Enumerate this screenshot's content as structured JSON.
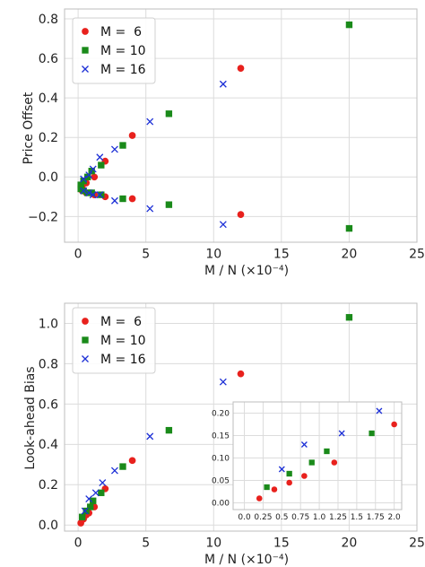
{
  "colors": {
    "m6": "#e8211d",
    "m10": "#1a8a1a",
    "m16": "#1c2fd6",
    "grid": "#dcdcdc",
    "axes": "#bdbdbd"
  },
  "chart_data": [
    {
      "type": "scatter",
      "title": "",
      "xlabel": "M / N (×10⁻⁴)",
      "ylabel": "Price Offset",
      "xlim": [
        -1,
        25
      ],
      "ylim": [
        -0.33,
        0.85
      ],
      "xticks": [
        0,
        5,
        10,
        15,
        20,
        25
      ],
      "xtick_labels": [
        "0",
        "5",
        "10",
        "15",
        "20",
        "25"
      ],
      "yticks": [
        -0.2,
        0.0,
        0.2,
        0.4,
        0.6,
        0.8
      ],
      "ytick_labels": [
        "−0.2",
        "0.0",
        "0.2",
        "0.4",
        "0.6",
        "0.8"
      ],
      "grid": true,
      "legend": "top-left",
      "series": [
        {
          "name": "M =  6",
          "marker": "circle",
          "x": [
            0.3,
            0.6,
            1.2,
            2.0,
            4.0,
            12.0,
            0.3,
            0.6,
            1.2,
            2.0,
            4.0,
            12.0
          ],
          "y": [
            -0.05,
            -0.03,
            0.0,
            0.08,
            0.21,
            0.55,
            -0.07,
            -0.08,
            -0.09,
            -0.1,
            -0.11,
            -0.19
          ]
        },
        {
          "name": "M = 10",
          "marker": "square",
          "x": [
            0.2,
            0.4,
            0.7,
            1.0,
            1.7,
            3.3,
            6.7,
            20.0,
            0.2,
            0.4,
            0.7,
            1.0,
            1.7,
            3.3,
            6.7,
            20.0
          ],
          "y": [
            -0.04,
            -0.02,
            0.0,
            0.03,
            0.06,
            0.16,
            0.32,
            0.77,
            -0.06,
            -0.07,
            -0.08,
            -0.08,
            -0.09,
            -0.11,
            -0.14,
            -0.26
          ]
        },
        {
          "name": "M = 16",
          "marker": "x",
          "x": [
            0.4,
            0.8,
            1.1,
            1.6,
            2.7,
            5.3,
            10.7,
            0.4,
            0.8,
            1.1,
            1.6,
            2.7,
            5.3,
            10.7
          ],
          "y": [
            -0.01,
            0.01,
            0.04,
            0.1,
            0.14,
            0.28,
            0.47,
            -0.07,
            -0.08,
            -0.09,
            -0.09,
            -0.12,
            -0.16,
            -0.24
          ]
        }
      ]
    },
    {
      "type": "scatter",
      "title": "",
      "xlabel": "M / N (×10⁻⁴)",
      "ylabel": "Look-ahead Bias",
      "xlim": [
        -1,
        25
      ],
      "ylim": [
        -0.03,
        1.1
      ],
      "xticks": [
        0,
        5,
        10,
        15,
        20,
        25
      ],
      "xtick_labels": [
        "0",
        "5",
        "10",
        "15",
        "20",
        "25"
      ],
      "yticks": [
        0.0,
        0.2,
        0.4,
        0.6,
        0.8,
        1.0
      ],
      "ytick_labels": [
        "0.0",
        "0.2",
        "0.4",
        "0.6",
        "0.8",
        "1.0"
      ],
      "grid": true,
      "legend": "top-left",
      "series": [
        {
          "name": "M =  6",
          "marker": "circle",
          "x": [
            0.2,
            0.4,
            0.6,
            0.8,
            1.2,
            2.0,
            4.0,
            12.0
          ],
          "y": [
            0.01,
            0.03,
            0.05,
            0.06,
            0.09,
            0.18,
            0.32,
            0.75
          ]
        },
        {
          "name": "M = 10",
          "marker": "square",
          "x": [
            0.3,
            0.6,
            0.9,
            1.1,
            1.7,
            3.3,
            6.7,
            20.0
          ],
          "y": [
            0.04,
            0.07,
            0.09,
            0.12,
            0.16,
            0.29,
            0.47,
            1.03
          ]
        },
        {
          "name": "M = 16",
          "marker": "x",
          "x": [
            0.5,
            0.8,
            1.3,
            1.8,
            2.7,
            5.3,
            10.7
          ],
          "y": [
            0.07,
            0.13,
            0.16,
            0.21,
            0.27,
            0.44,
            0.71
          ]
        }
      ],
      "inset": {
        "xlim": [
          -0.15,
          2.1
        ],
        "ylim": [
          -0.015,
          0.225
        ],
        "xticks": [
          0.0,
          0.25,
          0.5,
          0.75,
          1.0,
          1.25,
          1.5,
          1.75,
          2.0
        ],
        "xtick_labels": [
          "0.0",
          "0.25",
          "0.5",
          "0.75",
          "1.0",
          "1.25",
          "1.5",
          "1.75",
          "2.0"
        ],
        "yticks": [
          0.0,
          0.05,
          0.1,
          0.15,
          0.2
        ],
        "ytick_labels": [
          "0.00",
          "0.05",
          "0.10",
          "0.15",
          "0.20"
        ],
        "series": [
          {
            "name": "M =  6",
            "marker": "circle",
            "x": [
              0.2,
              0.4,
              0.6,
              0.8,
              1.2,
              2.0
            ],
            "y": [
              0.01,
              0.03,
              0.045,
              0.06,
              0.09,
              0.175
            ]
          },
          {
            "name": "M = 10",
            "marker": "square",
            "x": [
              0.3,
              0.6,
              0.9,
              1.1,
              1.7
            ],
            "y": [
              0.035,
              0.065,
              0.09,
              0.115,
              0.155
            ]
          },
          {
            "name": "M = 16",
            "marker": "x",
            "x": [
              0.5,
              0.8,
              1.3,
              1.8
            ],
            "y": [
              0.075,
              0.13,
              0.155,
              0.205
            ]
          }
        ]
      }
    }
  ]
}
